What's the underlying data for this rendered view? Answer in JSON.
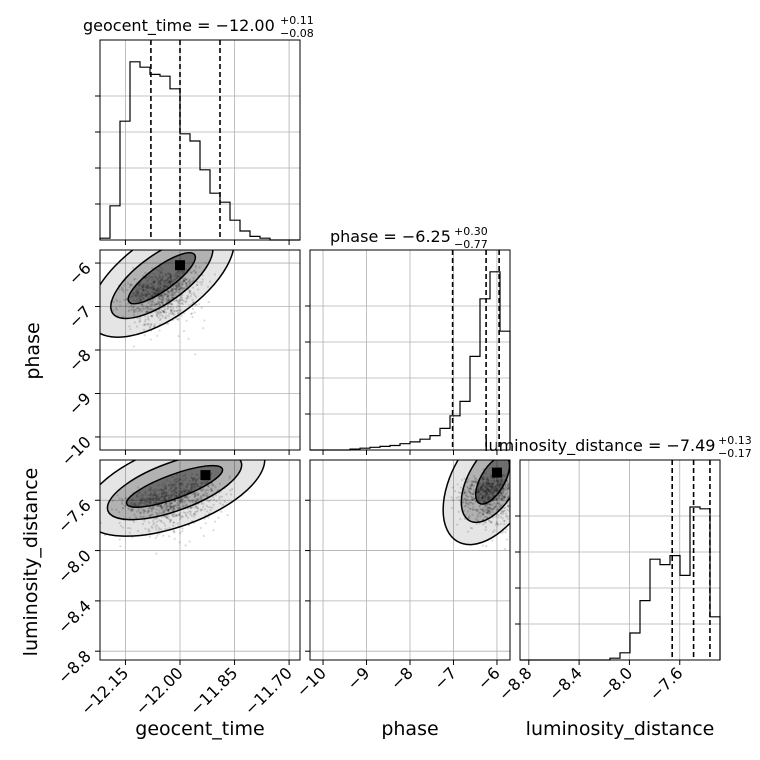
{
  "chart_data": {
    "type": "corner",
    "colors": {
      "ink": "#000000",
      "grid": "#b0b0b0",
      "scatter": "#000000"
    },
    "parameters": [
      {
        "name": "geocent_time",
        "median": "−12.00",
        "plus": "+0.11",
        "minus": "−0.08",
        "title_eq": "geocent_time = −12.00",
        "range": [
          -12.22,
          -11.67
        ],
        "ticks": [
          -12.15,
          -12.0,
          -11.85,
          -11.7
        ],
        "tick_labels": [
          "−12.15",
          "−12.00",
          "−11.85",
          "−11.70"
        ],
        "quantiles": [
          -12.08,
          -12.0,
          -11.89
        ]
      },
      {
        "name": "phase",
        "median": "−6.25",
        "plus": "+0.30",
        "minus": "−0.77",
        "title_eq": "phase = −6.25",
        "range": [
          -10.3,
          -5.7
        ],
        "ticks": [
          -10,
          -9,
          -8,
          -7,
          -6
        ],
        "tick_labels": [
          "−10",
          "−9",
          "−8",
          "−7",
          "−6"
        ],
        "quantiles": [
          -7.02,
          -6.25,
          -5.95
        ]
      },
      {
        "name": "luminosity_distance",
        "median": "−7.49",
        "plus": "+0.13",
        "minus": "−0.17",
        "title_eq": "luminosity_distance = −7.49",
        "range": [
          -8.87,
          -7.28
        ],
        "ticks": [
          -8.8,
          -8.4,
          -8.0,
          -7.6
        ],
        "tick_labels": [
          "−8.8",
          "−8.4",
          "−8.0",
          "−7.6"
        ],
        "quantiles": [
          -7.66,
          -7.49,
          -7.36
        ]
      }
    ],
    "histograms": [
      {
        "param": "geocent_time",
        "bins": 20,
        "counts": [
          0.01,
          0.19,
          0.66,
          0.99,
          0.96,
          0.92,
          0.91,
          0.84,
          0.59,
          0.55,
          0.39,
          0.26,
          0.21,
          0.11,
          0.05,
          0.02,
          0.01,
          0.0,
          0.0,
          0.0
        ]
      },
      {
        "param": "phase",
        "bins": 20,
        "counts": [
          0.0,
          0.0,
          0.0,
          0.0,
          0.005,
          0.01,
          0.015,
          0.02,
          0.025,
          0.035,
          0.045,
          0.06,
          0.08,
          0.12,
          0.19,
          0.27,
          0.52,
          0.84,
          0.99,
          0.66
        ]
      },
      {
        "param": "luminosity_distance",
        "bins": 20,
        "counts": [
          0.0,
          0.0,
          0.0,
          0.0,
          0.0,
          0.0,
          0.0,
          0.0,
          0.0,
          0.01,
          0.04,
          0.15,
          0.33,
          0.56,
          0.53,
          0.58,
          0.47,
          0.85,
          0.84,
          0.24
        ]
      }
    ],
    "pairs": [
      {
        "x": "geocent_time",
        "y": "phase",
        "mode": [
          -12.0,
          -6.05
        ],
        "mode2": [
          -12.1,
          -6.65
        ]
      },
      {
        "x": "geocent_time",
        "y": "luminosity_distance",
        "mode": [
          -11.93,
          -7.4
        ],
        "mode2": [
          -12.1,
          -7.58
        ]
      },
      {
        "x": "phase",
        "y": "luminosity_distance",
        "mode": [
          -6.0,
          -7.38
        ],
        "mode2": [
          -6.2,
          -7.5
        ]
      }
    ],
    "xlabels": [
      "geocent_time",
      "phase",
      "luminosity_distance"
    ],
    "ylabels": [
      "phase",
      "luminosity_distance"
    ],
    "grid": true
  }
}
